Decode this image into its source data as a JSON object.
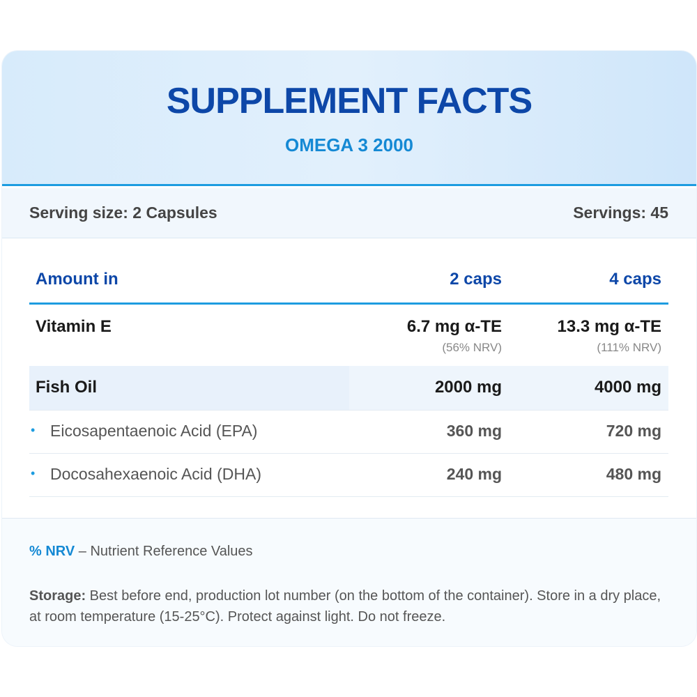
{
  "header": {
    "title": "SUPPLEMENT FACTS",
    "subtitle": "OMEGA 3 2000"
  },
  "serving": {
    "size": "Serving size: 2 Capsules",
    "count": "Servings: 45"
  },
  "table": {
    "columns": [
      "Amount in",
      "2 caps",
      "4 caps"
    ],
    "rows": [
      {
        "name": "Vitamin E",
        "v2": "6.7 mg α-TE",
        "nrv2": "(56% NRV)",
        "v4": "13.3 mg α-TE",
        "nrv4": "(111% NRV)"
      },
      {
        "name": "Fish Oil",
        "v2": "2000 mg",
        "v4": "4000 mg"
      },
      {
        "bullet": "•",
        "name": "Eicosapentaenoic Acid (EPA)",
        "v2": "360 mg",
        "v4": "720 mg"
      },
      {
        "bullet": "•",
        "name": "Docosahexaenoic Acid (DHA)",
        "v2": "240 mg",
        "v4": "480 mg"
      }
    ]
  },
  "footer": {
    "nrv_key": "% NRV",
    "nrv_desc": " – Nutrient Reference Values",
    "storage_label": "Storage:",
    "storage_text": " Best before end, production lot number (on the bottom of the container). Store in a dry place, at room temperature (15-25°C). Protect against light. Do not freeze."
  },
  "colors": {
    "title": "#0d47a8",
    "accent": "#1d9ce0",
    "subtitle": "#1589d4",
    "header_bg": "#d7ebfb"
  }
}
